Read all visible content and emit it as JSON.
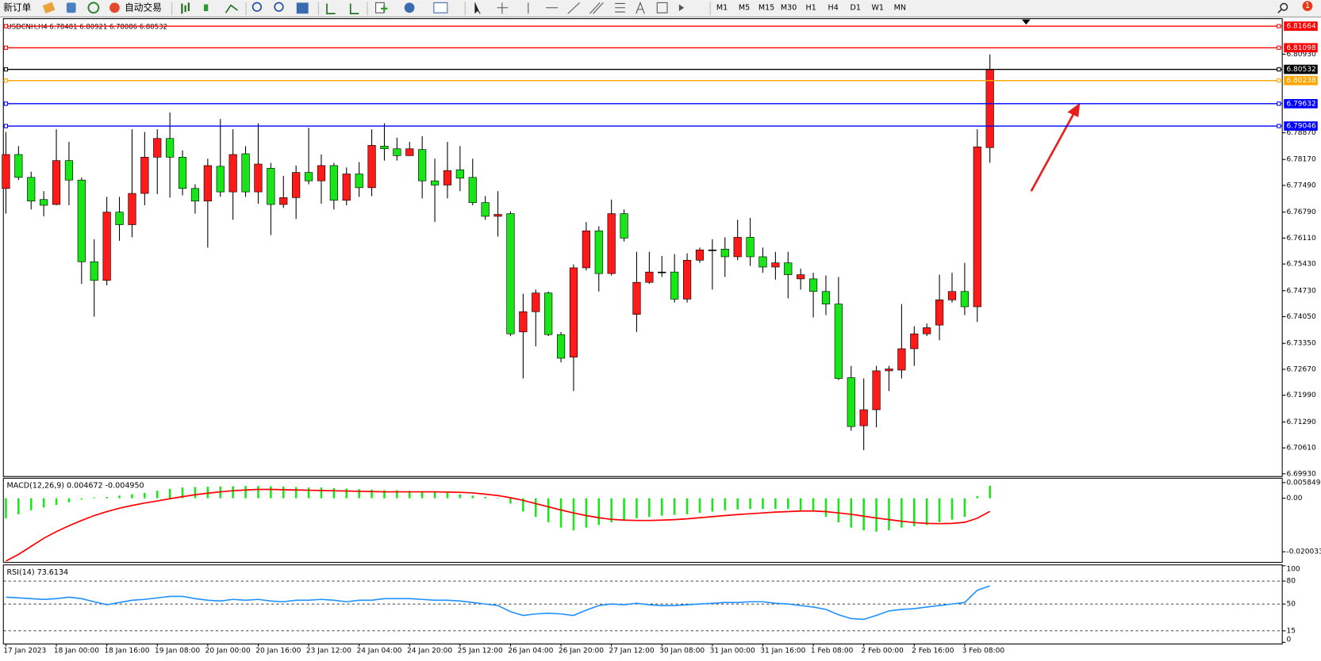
{
  "toolbar": {
    "new_order": "新订单",
    "auto_trading": "自动交易",
    "timeframes": [
      "M1",
      "M5",
      "M15",
      "M30",
      "H1",
      "H4",
      "D1",
      "W1",
      "MN"
    ],
    "notifications": 1
  },
  "chart_data": [
    {
      "type": "candlestick",
      "title": "USDCNH,H4  6.78481 6.80921 6.78086 6.80532",
      "up_color": "#ff1a1a",
      "down_color": "#19e619",
      "categories": [
        "17 Jan 2023",
        null,
        null,
        null,
        "18 Jan 00:00",
        null,
        null,
        null,
        "18 Jan 16:00",
        null,
        null,
        null,
        "19 Jan 08:00",
        null,
        null,
        null,
        "20 Jan 00:00",
        null,
        null,
        null,
        "20 Jan 16:00",
        null,
        null,
        null,
        "23 Jan 12:00",
        null,
        null,
        null,
        "24 Jan 04:00",
        null,
        null,
        null,
        "24 Jan 20:00",
        null,
        null,
        null,
        "25 Jan 12:00",
        null,
        null,
        null,
        "26 Jan 04:00",
        null,
        null,
        null,
        "26 Jan 20:00",
        null,
        null,
        null,
        "27 Jan 12:00",
        null,
        null,
        null,
        "30 Jan 08:00",
        null,
        null,
        null,
        "31 Jan 00:00",
        null,
        null,
        null,
        "31 Jan 16:00",
        null,
        null,
        null,
        "1 Feb 08:00",
        null,
        null,
        null,
        "2 Feb 00:00",
        null,
        null,
        null,
        "2 Feb 16:00",
        null,
        null,
        null,
        "3 Feb 08:00",
        null,
        null
      ],
      "open": [
        6.7741,
        6.783,
        6.777,
        6.7712,
        6.7699,
        6.7814,
        6.7763,
        6.7549,
        6.75,
        6.7679,
        6.7646,
        6.7728,
        6.7823,
        6.7872,
        6.7823,
        6.7741,
        6.7708,
        6.7799,
        6.7732,
        6.7832,
        6.7732,
        6.7794,
        6.7699,
        6.7717,
        6.7783,
        6.7761,
        6.7801,
        6.771,
        6.7779,
        6.7743,
        6.7852,
        6.7845,
        6.7827,
        6.7843,
        6.7761,
        6.775,
        6.779,
        6.777,
        6.7704,
        6.7668,
        6.7675,
        6.7365,
        6.7418,
        6.7467,
        6.7358,
        6.7299,
        6.7533,
        6.763,
        6.7518,
        6.7675,
        6.7411,
        6.7495,
        6.7522,
        6.7522,
        6.7451,
        6.7553,
        6.758,
        6.7582,
        6.7562,
        6.7613,
        6.7562,
        6.7535,
        6.7546,
        6.7504,
        6.7504,
        6.7471,
        6.7438,
        6.7245,
        6.7119,
        6.7161,
        6.7263,
        6.7265,
        6.7321,
        6.736,
        6.7383,
        6.7449,
        6.7471,
        6.7431,
        6.78481
      ],
      "high": [
        6.7889,
        6.7852,
        6.7785,
        6.7734,
        6.7896,
        6.7863,
        6.777,
        6.7608,
        6.7719,
        6.7719,
        6.7896,
        6.7889,
        6.7896,
        6.794,
        6.7841,
        6.7752,
        6.7819,
        6.7923,
        6.7896,
        6.7852,
        6.7912,
        6.7808,
        6.7774,
        6.7801,
        6.79,
        6.783,
        6.7808,
        6.7796,
        6.781,
        6.7896,
        6.7912,
        6.7874,
        6.7863,
        6.7878,
        6.7819,
        6.7863,
        6.7852,
        6.7819,
        6.7721,
        6.7734,
        6.7681,
        6.7465,
        6.7476,
        6.7471,
        6.7365,
        6.7542,
        6.7653,
        6.7642,
        6.7712,
        6.7686,
        6.7575,
        6.7575,
        6.7564,
        6.7569,
        6.7571,
        6.7586,
        6.7608,
        6.7613,
        6.7659,
        6.7664,
        6.7586,
        6.7575,
        6.7575,
        6.7531,
        6.752,
        6.7513,
        6.7509,
        6.7276,
        6.7243,
        6.7276,
        6.7276,
        6.7438,
        6.738,
        6.7387,
        6.7515,
        6.752,
        6.7546,
        6.7896,
        6.80921
      ],
      "low": [
        6.7675,
        6.7763,
        6.7686,
        6.7668,
        6.7697,
        6.7697,
        6.7491,
        6.7405,
        6.7487,
        6.7604,
        6.7613,
        6.7697,
        6.7726,
        6.7717,
        6.7723,
        6.7675,
        6.7586,
        6.7719,
        6.7659,
        6.7719,
        6.7701,
        6.7619,
        6.769,
        6.7661,
        6.7752,
        6.7701,
        6.7686,
        6.7697,
        6.7719,
        6.7721,
        6.7814,
        6.7814,
        6.7827,
        6.7715,
        6.7653,
        6.7715,
        6.7734,
        6.7697,
        6.7659,
        6.7615,
        6.7354,
        6.7243,
        6.7327,
        6.7354,
        6.7285,
        6.721,
        6.7526,
        6.7471,
        6.7513,
        6.7602,
        6.7365,
        6.7491,
        6.7509,
        6.7442,
        6.7442,
        6.7546,
        6.7476,
        6.7509,
        6.7553,
        6.7538,
        6.752,
        6.7502,
        6.7453,
        6.7476,
        6.7403,
        6.7409,
        6.7239,
        6.7106,
        6.7055,
        6.7115,
        6.721,
        6.7243,
        6.7276,
        6.7354,
        6.7343,
        6.7442,
        6.7409,
        6.7391,
        6.78086
      ],
      "close": [
        6.783,
        6.777,
        6.7708,
        6.7697,
        6.7814,
        6.7763,
        6.7549,
        6.75,
        6.7679,
        6.7646,
        6.7728,
        6.7823,
        6.7872,
        6.7823,
        6.7741,
        6.7708,
        6.7801,
        6.7732,
        6.783,
        6.7732,
        6.7805,
        6.7699,
        6.7717,
        6.7783,
        6.7761,
        6.7801,
        6.771,
        6.7779,
        6.7743,
        6.7854,
        6.7845,
        6.7827,
        6.7845,
        6.7761,
        6.775,
        6.7788,
        6.7768,
        6.7704,
        6.7668,
        6.7673,
        6.736,
        6.7418,
        6.7467,
        6.7358,
        6.7296,
        6.7533,
        6.763,
        6.7518,
        6.7675,
        6.7611,
        6.7495,
        6.7522,
        6.7522,
        6.7451,
        6.7553,
        6.758,
        6.758,
        6.7562,
        6.7613,
        6.7562,
        6.7535,
        6.7546,
        6.7515,
        6.7515,
        6.7471,
        6.7438,
        6.7243,
        6.7117,
        6.7161,
        6.7263,
        6.7268,
        6.7321,
        6.736,
        6.7376,
        6.7449,
        6.7471,
        6.7431,
        6.785,
        6.80532
      ],
      "ylim": [
        6.6986,
        6.8186
      ],
      "yticks": [
        {
          "value": 6.8093,
          "label": "6.80930"
        },
        {
          "value": 6.7887,
          "label": "6.78870"
        },
        {
          "value": 6.7817,
          "label": "6.78170"
        },
        {
          "value": 6.7749,
          "label": "6.77490"
        },
        {
          "value": 6.7679,
          "label": "6.76790"
        },
        {
          "value": 6.7611,
          "label": "6.76110"
        },
        {
          "value": 6.7543,
          "label": "6.75430"
        },
        {
          "value": 6.7473,
          "label": "6.74730"
        },
        {
          "value": 6.7405,
          "label": "6.74050"
        },
        {
          "value": 6.7335,
          "label": "6.73350"
        },
        {
          "value": 6.7267,
          "label": "6.72670"
        },
        {
          "value": 6.7199,
          "label": "6.71990"
        },
        {
          "value": 6.7129,
          "label": "6.71290"
        },
        {
          "value": 6.7061,
          "label": "6.70610"
        },
        {
          "value": 6.6993,
          "label": "6.69930"
        }
      ],
      "hlines": [
        {
          "value": 6.81664,
          "color": "#ff0000"
        },
        {
          "value": 6.81098,
          "color": "#ff0000"
        },
        {
          "value": 6.80532,
          "color": "#000000"
        },
        {
          "value": 6.80238,
          "color": "#ffa500"
        },
        {
          "value": 6.79632,
          "color": "#0000ff"
        },
        {
          "value": 6.79046,
          "color": "#0000ff"
        }
      ]
    },
    {
      "type": "macd",
      "title": "MACD(12,26,9) 0.004672 -0.004950",
      "histogram": {
        "color": "#19e619",
        "values": [
          -0.0075,
          -0.006,
          -0.0045,
          -0.0035,
          -0.0025,
          -0.0015,
          -0.0005,
          0.0003,
          0.0005,
          0.001,
          0.0015,
          0.002,
          0.0028,
          0.0035,
          0.004,
          0.0042,
          0.0043,
          0.0044,
          0.0045,
          0.0046,
          0.0046,
          0.0045,
          0.0044,
          0.0042,
          0.004,
          0.004,
          0.0038,
          0.0036,
          0.0034,
          0.0032,
          0.003,
          0.003,
          0.0028,
          0.0026,
          0.0024,
          0.002,
          0.0015,
          0.001,
          0.0005,
          0.0002,
          -0.002,
          -0.005,
          -0.007,
          -0.009,
          -0.011,
          -0.012,
          -0.011,
          -0.01,
          -0.009,
          -0.008,
          -0.0075,
          -0.007,
          -0.0065,
          -0.0062,
          -0.006,
          -0.0055,
          -0.005,
          -0.0045,
          -0.0042,
          -0.004,
          -0.004,
          -0.004,
          -0.004,
          -0.0045,
          -0.005,
          -0.007,
          -0.009,
          -0.011,
          -0.012,
          -0.0125,
          -0.012,
          -0.011,
          -0.0105,
          -0.01,
          -0.009,
          -0.008,
          -0.007,
          0.0008,
          0.004672
        ]
      },
      "signal": {
        "color": "#ff0000",
        "values": [
          -0.0235,
          -0.021,
          -0.018,
          -0.015,
          -0.0125,
          -0.0103,
          -0.0083,
          -0.0065,
          -0.005,
          -0.0037,
          -0.0027,
          -0.0018,
          -0.001,
          -0.0002,
          0.0006,
          0.0013,
          0.0019,
          0.0024,
          0.0028,
          0.0031,
          0.0033,
          0.0033,
          0.0032,
          0.0031,
          0.003,
          0.0029,
          0.0028,
          0.0027,
          0.0026,
          0.0025,
          0.0024,
          0.0024,
          0.0024,
          0.0024,
          0.0024,
          0.0023,
          0.0022,
          0.002,
          0.0015,
          0.001,
          0.0002,
          -0.0008,
          -0.002,
          -0.0032,
          -0.0044,
          -0.0055,
          -0.0065,
          -0.0073,
          -0.0079,
          -0.0082,
          -0.0083,
          -0.0083,
          -0.0082,
          -0.008,
          -0.0077,
          -0.0073,
          -0.0069,
          -0.0065,
          -0.0061,
          -0.0058,
          -0.0055,
          -0.0052,
          -0.005,
          -0.0048,
          -0.0048,
          -0.005,
          -0.0055,
          -0.006,
          -0.0067,
          -0.0074,
          -0.008,
          -0.0086,
          -0.0091,
          -0.0094,
          -0.0095,
          -0.0094,
          -0.009,
          -0.0075,
          -0.00495
        ]
      },
      "ylim": [
        -0.024,
        0.0075
      ],
      "yticks": [
        0.005849,
        {
          "value": 0,
          "label": "0.00"
        },
        -0.020033
      ]
    },
    {
      "type": "rsi",
      "title": "RSI(14) 73.6134",
      "color": "#1e90ff",
      "values": [
        59,
        58,
        57,
        56,
        57,
        59,
        57,
        53,
        49,
        52,
        55,
        56,
        58,
        60,
        60,
        57,
        55,
        54,
        56,
        55,
        56,
        54,
        53,
        55,
        55,
        56,
        55,
        53,
        55,
        55,
        57,
        57,
        57,
        56,
        55,
        55,
        54,
        52,
        50,
        48,
        40,
        35,
        37,
        38,
        37,
        35,
        42,
        48,
        50,
        49,
        51,
        49,
        48,
        48,
        49,
        50,
        51,
        52,
        52,
        53,
        53,
        51,
        50,
        48,
        46,
        43,
        36,
        31,
        30,
        35,
        41,
        43,
        44,
        46,
        48,
        50,
        52,
        68,
        73.6134
      ],
      "ylim": [
        0,
        100
      ],
      "yticks": [
        100,
        80,
        50,
        15,
        0
      ],
      "levels": [
        80,
        50,
        15
      ]
    }
  ]
}
